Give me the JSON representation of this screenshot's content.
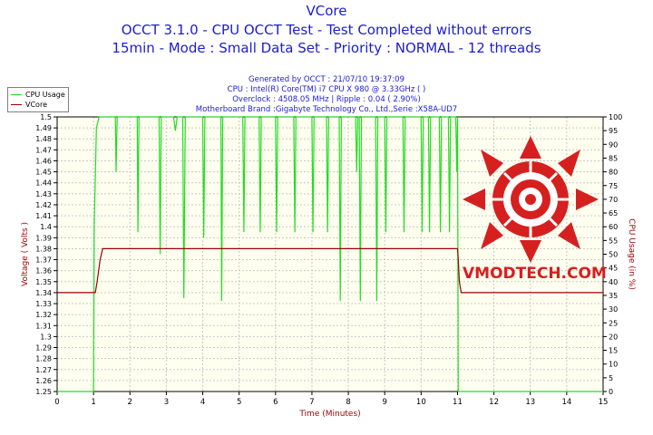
{
  "header": {
    "title": "VCore",
    "subtitle1": "OCCT 3.1.0 - CPU OCCT Test - Test Completed without errors",
    "subtitle2": "15min - Mode : Small Data Set - Priority : NORMAL - 12 threads"
  },
  "info": {
    "line1": "Generated by OCCT : 21/07/10 19:37:09",
    "line2": "CPU : Intel(R) Core(TM) i7 CPU X 980 @ 3.33GHz (  )",
    "line3": "Overclock : 4508.05 MHz | Ripple : 0.04 ( 2.90%)",
    "line4": "Motherboard Brand :Gigabyte Technology Co., Ltd.,Serie :X58A-UD7"
  },
  "logo": {
    "text": "VMODTECH.COM",
    "color": "#d62020"
  },
  "colors": {
    "cpu": "#22dd22",
    "vcore": "#990000",
    "plot_bg": "#fffff0",
    "grid": "#c8c8c8",
    "title": "#1c1cd2"
  },
  "chart_data": {
    "type": "line",
    "xlabel": "Time (Minutes)",
    "ylabel_left": "Voltage ( Volts )",
    "ylabel_right": "CPU Usage (in %)",
    "xlim": [
      0,
      15
    ],
    "ylim_left": [
      1.25,
      1.5
    ],
    "ylim_right": [
      0,
      100
    ],
    "x_ticks": [
      0,
      1,
      2,
      3,
      4,
      5,
      6,
      7,
      8,
      9,
      10,
      11,
      12,
      13,
      14,
      15
    ],
    "y_left_ticks": [
      "1.25",
      "1.26",
      "1.27",
      "1.28",
      "1.29",
      "1.3",
      "1.31",
      "1.32",
      "1.33",
      "1.34",
      "1.35",
      "1.36",
      "1.37",
      "1.38",
      "1.39",
      "1.4",
      "1.41",
      "1.42",
      "1.43",
      "1.44",
      "1.45",
      "1.46",
      "1.47",
      "1.48",
      "1.49",
      "1.5"
    ],
    "y_right_ticks": [
      "0",
      "5",
      "10",
      "15",
      "20",
      "25",
      "30",
      "35",
      "40",
      "45",
      "50",
      "55",
      "60",
      "65",
      "70",
      "75",
      "80",
      "85",
      "90",
      "95",
      "100"
    ],
    "grid": true,
    "legend": "top-left",
    "series": [
      {
        "name": "CPU Usage",
        "axis": "right",
        "points": [
          [
            0,
            0
          ],
          [
            1.0,
            0
          ],
          [
            1.02,
            60
          ],
          [
            1.08,
            96
          ],
          [
            1.15,
            100
          ],
          [
            1.6,
            100
          ],
          [
            1.62,
            80
          ],
          [
            1.65,
            100
          ],
          [
            2.2,
            100
          ],
          [
            2.22,
            58
          ],
          [
            2.25,
            100
          ],
          [
            2.8,
            100
          ],
          [
            2.83,
            50
          ],
          [
            2.86,
            100
          ],
          [
            3.2,
            100
          ],
          [
            3.25,
            95
          ],
          [
            3.3,
            100
          ],
          [
            3.45,
            100
          ],
          [
            3.48,
            34
          ],
          [
            3.52,
            100
          ],
          [
            4.0,
            100
          ],
          [
            4.03,
            56
          ],
          [
            4.06,
            100
          ],
          [
            4.5,
            100
          ],
          [
            4.52,
            33
          ],
          [
            4.55,
            100
          ],
          [
            5.1,
            100
          ],
          [
            5.13,
            58
          ],
          [
            5.16,
            100
          ],
          [
            5.55,
            100
          ],
          [
            5.58,
            58
          ],
          [
            5.61,
            100
          ],
          [
            6.0,
            100
          ],
          [
            6.03,
            58
          ],
          [
            6.06,
            100
          ],
          [
            6.5,
            100
          ],
          [
            6.53,
            58
          ],
          [
            6.56,
            100
          ],
          [
            7.0,
            100
          ],
          [
            7.03,
            58
          ],
          [
            7.06,
            100
          ],
          [
            7.4,
            100
          ],
          [
            7.43,
            58
          ],
          [
            7.46,
            100
          ],
          [
            7.75,
            100
          ],
          [
            7.78,
            33
          ],
          [
            7.81,
            100
          ],
          [
            8.2,
            100
          ],
          [
            8.23,
            80
          ],
          [
            8.26,
            100
          ],
          [
            8.3,
            100
          ],
          [
            8.33,
            33
          ],
          [
            8.36,
            100
          ],
          [
            8.75,
            100
          ],
          [
            8.78,
            33
          ],
          [
            8.81,
            100
          ],
          [
            9.0,
            100
          ],
          [
            9.03,
            58
          ],
          [
            9.06,
            100
          ],
          [
            9.5,
            100
          ],
          [
            9.53,
            58
          ],
          [
            9.56,
            100
          ],
          [
            10.0,
            100
          ],
          [
            10.03,
            58
          ],
          [
            10.06,
            100
          ],
          [
            10.2,
            100
          ],
          [
            10.23,
            58
          ],
          [
            10.26,
            100
          ],
          [
            10.5,
            100
          ],
          [
            10.53,
            58
          ],
          [
            10.56,
            100
          ],
          [
            10.75,
            100
          ],
          [
            10.78,
            58
          ],
          [
            10.81,
            100
          ],
          [
            10.95,
            100
          ],
          [
            10.98,
            80
          ],
          [
            11.0,
            100
          ],
          [
            11.02,
            0
          ],
          [
            15,
            0
          ]
        ]
      },
      {
        "name": "VCore",
        "axis": "left",
        "points": [
          [
            0,
            1.34
          ],
          [
            1.05,
            1.34
          ],
          [
            1.1,
            1.35
          ],
          [
            1.18,
            1.37
          ],
          [
            1.25,
            1.38
          ],
          [
            11.0,
            1.38
          ],
          [
            11.02,
            1.37
          ],
          [
            11.05,
            1.35
          ],
          [
            11.1,
            1.34
          ],
          [
            15,
            1.34
          ]
        ]
      }
    ]
  }
}
